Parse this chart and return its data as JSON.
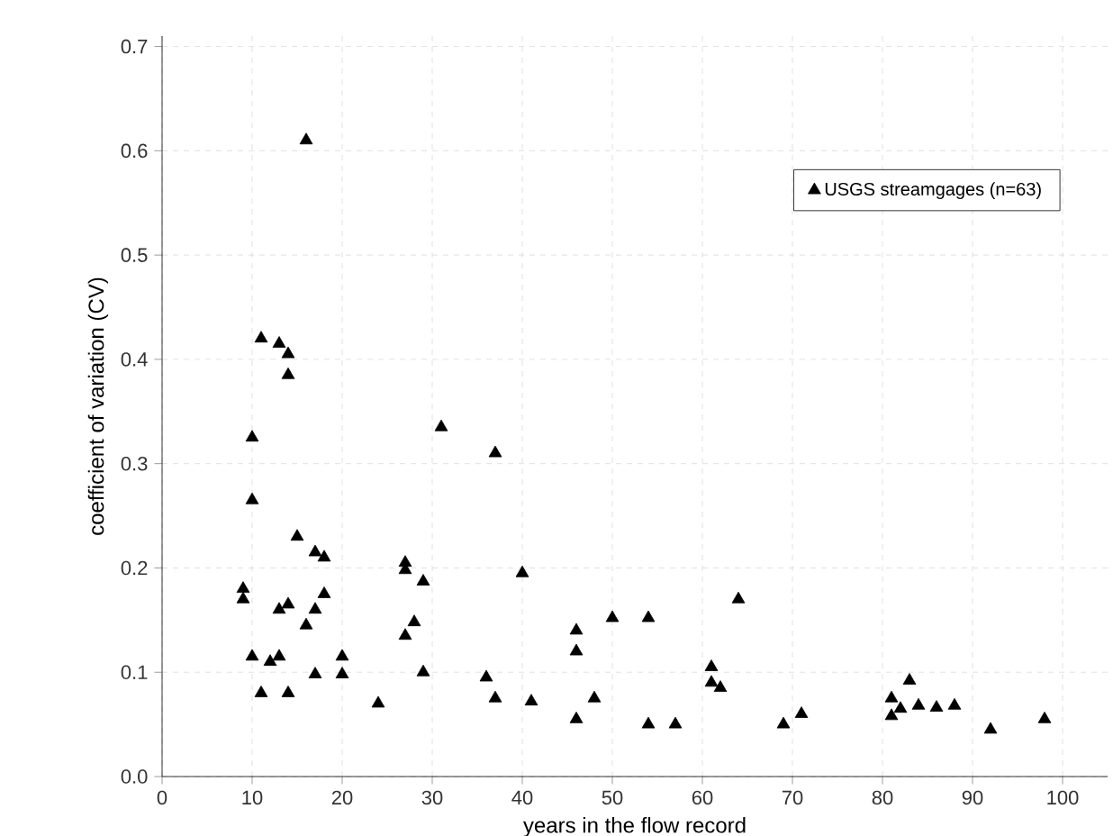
{
  "chart_data": {
    "type": "scatter",
    "xlabel": "years in the flow record",
    "ylabel": "coefficient of variation (CV)",
    "xlim": [
      0,
      105
    ],
    "ylim": [
      0,
      0.71
    ],
    "xticks": [
      0,
      10,
      20,
      30,
      40,
      50,
      60,
      70,
      80,
      90,
      100
    ],
    "yticks": [
      {
        "value": 0,
        "label": "0.0"
      },
      {
        "value": 0.1,
        "label": "0.1"
      },
      {
        "value": 0.2,
        "label": "0.2"
      },
      {
        "value": 0.3,
        "label": "0.3"
      },
      {
        "value": 0.4,
        "label": "0.4"
      },
      {
        "value": 0.5,
        "label": "0.5"
      },
      {
        "value": 0.6,
        "label": "0.6"
      },
      {
        "value": 0.7,
        "label": "0.7"
      }
    ],
    "grid": true,
    "legend": "top right",
    "marker": "triangle",
    "series": [
      {
        "name": "USGS streamgages (n=63)",
        "color": "#000000",
        "x": [
          16,
          11,
          13,
          14,
          14,
          10,
          10,
          15,
          17,
          18,
          9,
          9,
          13,
          14,
          18,
          17,
          16,
          10,
          12,
          13,
          11,
          14,
          17,
          20,
          20,
          24,
          27,
          27,
          29,
          28,
          27,
          29,
          31,
          37,
          36,
          37,
          40,
          41,
          46,
          46,
          46,
          48,
          50,
          54,
          54,
          57,
          61,
          61,
          62,
          64,
          69,
          71,
          81,
          81,
          82,
          83,
          84,
          86,
          88,
          92,
          98
        ],
        "values": [
          0.61,
          0.42,
          0.415,
          0.405,
          0.385,
          0.325,
          0.265,
          0.23,
          0.215,
          0.21,
          0.18,
          0.17,
          0.16,
          0.165,
          0.175,
          0.16,
          0.145,
          0.115,
          0.11,
          0.115,
          0.08,
          0.08,
          0.098,
          0.115,
          0.098,
          0.07,
          0.205,
          0.198,
          0.187,
          0.148,
          0.135,
          0.1,
          0.335,
          0.31,
          0.095,
          0.075,
          0.195,
          0.072,
          0.14,
          0.12,
          0.055,
          0.075,
          0.152,
          0.152,
          0.05,
          0.05,
          0.105,
          0.09,
          0.085,
          0.17,
          0.05,
          0.06,
          0.075,
          0.058,
          0.065,
          0.092,
          0.068,
          0.066,
          0.068,
          0.045,
          0.055
        ]
      }
    ]
  }
}
